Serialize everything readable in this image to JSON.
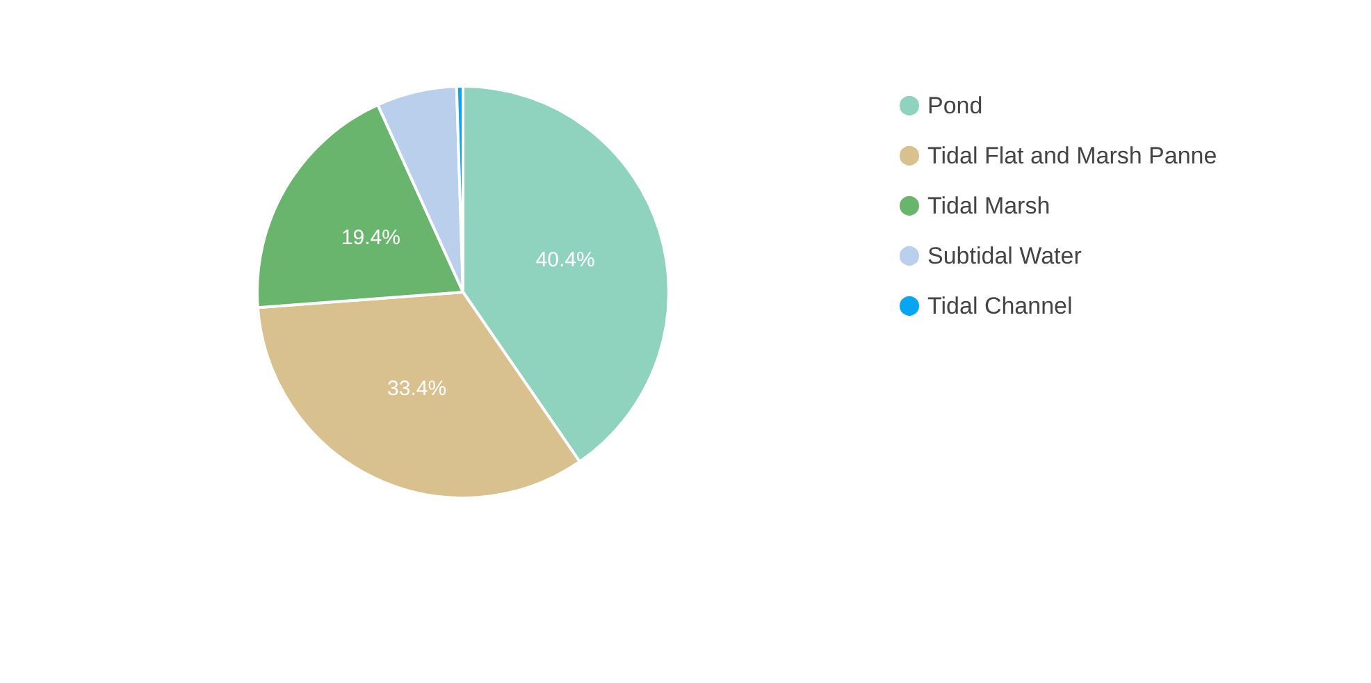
{
  "chart_data": {
    "type": "pie",
    "categories": [
      "Pond",
      "Tidal Flat and Marsh Panne",
      "Tidal Marsh",
      "Subtidal Water",
      "Tidal Channel"
    ],
    "values": [
      40.4,
      33.4,
      19.4,
      6.3,
      0.5
    ],
    "value_labels": [
      "40.4%",
      "33.4%",
      "19.4%",
      null,
      null
    ],
    "colors": [
      "#8fd3bf",
      "#d9c08f",
      "#6ab56e",
      "#b9cfec",
      "#0aa5f0"
    ],
    "legend": "top right"
  }
}
